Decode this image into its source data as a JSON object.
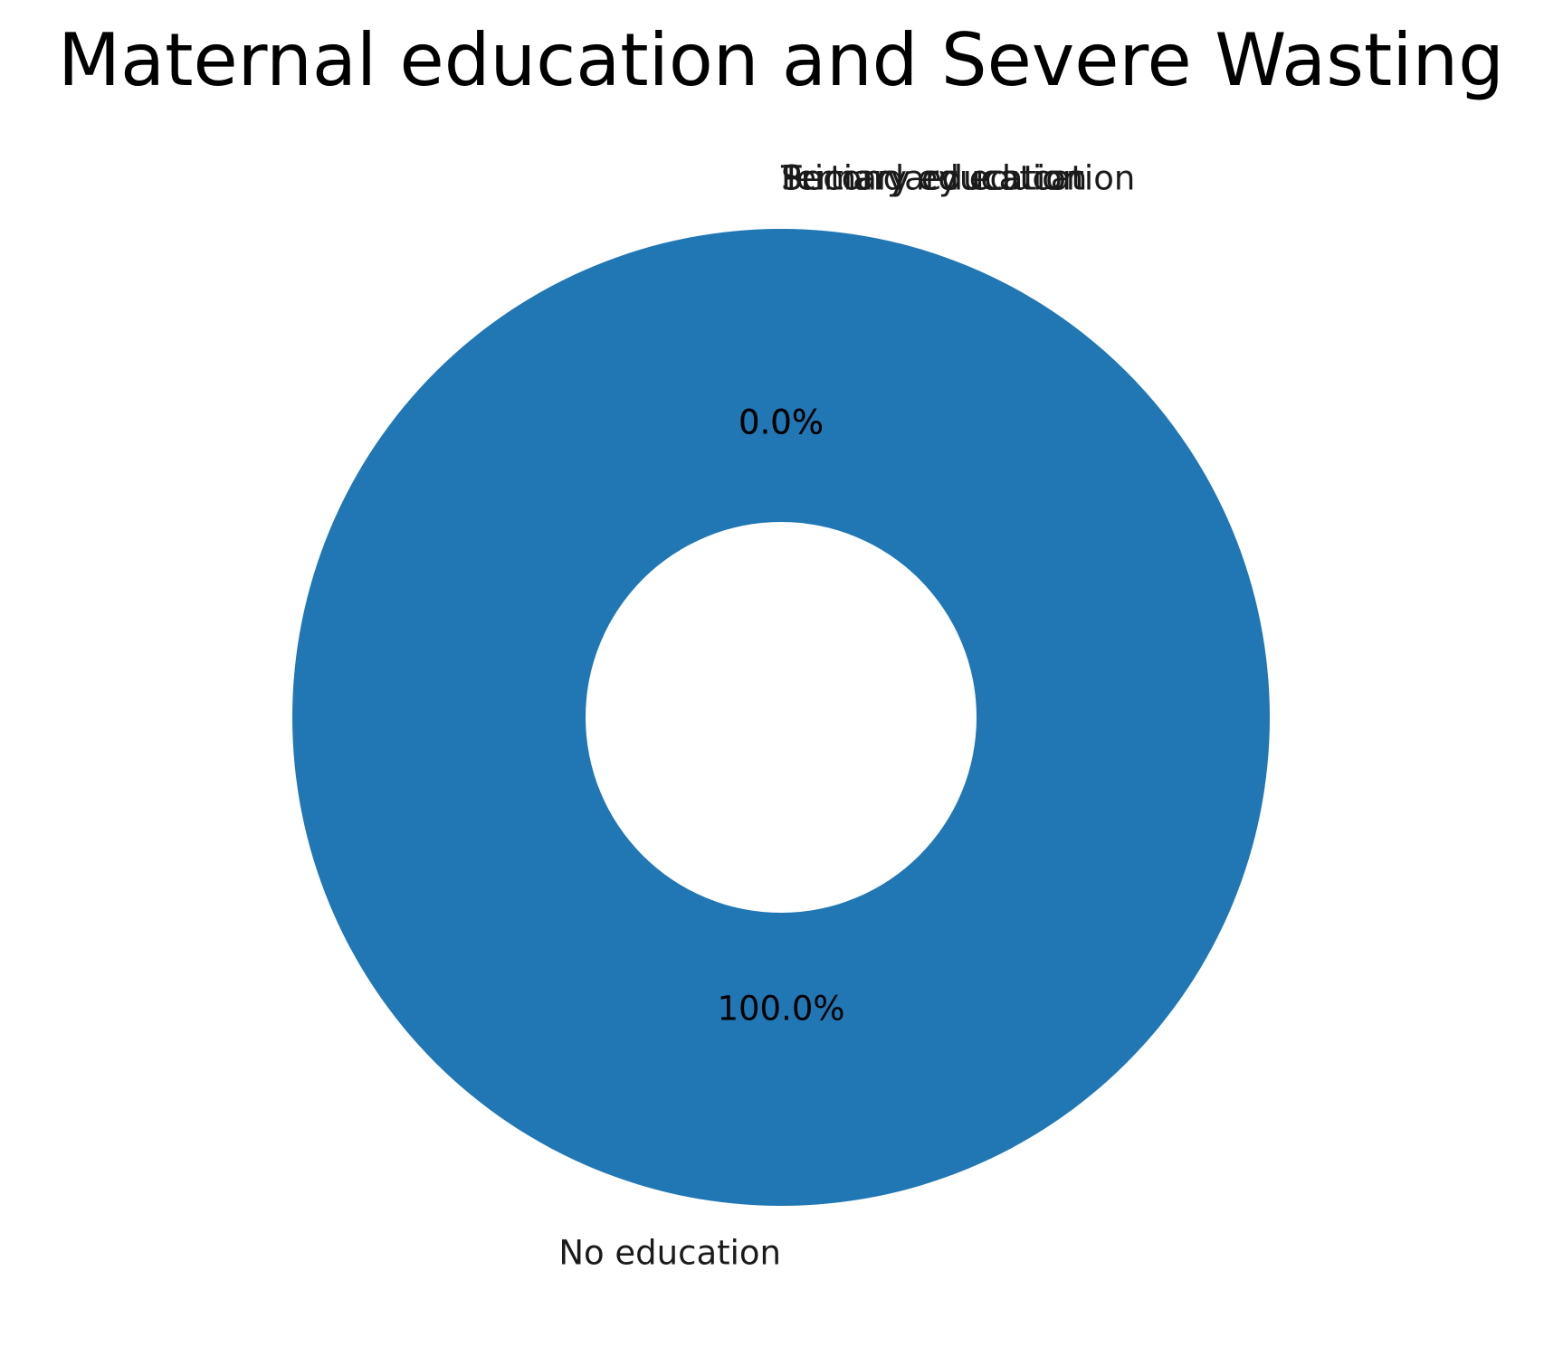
{
  "chart_data": {
    "type": "pie",
    "variant": "donut",
    "title": "Maternal education and Severe Wasting",
    "categories": [
      "No education",
      "Primary education",
      "Secondary education",
      "Tertiary education"
    ],
    "values": [
      100.0,
      0.0,
      0.0,
      0.0
    ],
    "percent_labels": [
      "100.0%",
      "0.0%",
      "0.0%",
      "0.0%"
    ],
    "colors": [
      "#2077b4",
      "#ff7f0e",
      "#2ca02c",
      "#d62728"
    ],
    "hole_color": "#ffffff",
    "legend": "none"
  }
}
